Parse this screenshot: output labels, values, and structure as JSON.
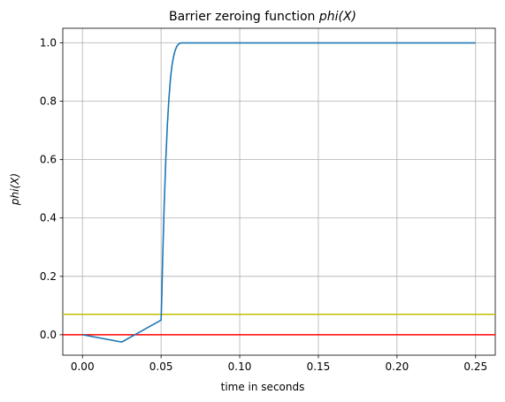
{
  "chart_data": {
    "type": "line",
    "title": "Barrier zeroing function ",
    "title_math": "phi(X)",
    "xlabel": "time in seconds",
    "ylabel": "phi(X)",
    "xlim": [
      -0.0125,
      0.2625
    ],
    "ylim": [
      -0.07,
      1.05
    ],
    "xticks": [
      0.0,
      0.05,
      0.1,
      0.15,
      0.2,
      0.25
    ],
    "xtick_labels": [
      "0.00",
      "0.05",
      "0.10",
      "0.15",
      "0.20",
      "0.25"
    ],
    "yticks": [
      0.0,
      0.2,
      0.4,
      0.6,
      0.8,
      1.0
    ],
    "ytick_labels": [
      "0.0",
      "0.2",
      "0.4",
      "0.6",
      "0.8",
      "1.0"
    ],
    "grid": true,
    "series": [
      {
        "color": "#1f77b4",
        "x": [
          0.0,
          0.025,
          0.05,
          0.0505,
          0.051,
          0.052,
          0.053,
          0.054,
          0.055,
          0.056,
          0.057,
          0.058,
          0.059,
          0.06,
          0.061,
          0.062,
          0.063,
          0.065,
          0.1,
          0.15,
          0.2,
          0.25
        ],
        "y": [
          0.0,
          -0.025,
          0.05,
          0.14,
          0.26,
          0.45,
          0.6,
          0.72,
          0.81,
          0.88,
          0.925,
          0.955,
          0.975,
          0.988,
          0.995,
          0.999,
          1.0,
          1.0,
          1.0,
          1.0,
          1.0,
          1.0
        ]
      }
    ],
    "hlines": [
      {
        "y": 0.07,
        "color": "#bfbf00"
      },
      {
        "y": 0.0,
        "color": "#ff0000"
      }
    ]
  }
}
